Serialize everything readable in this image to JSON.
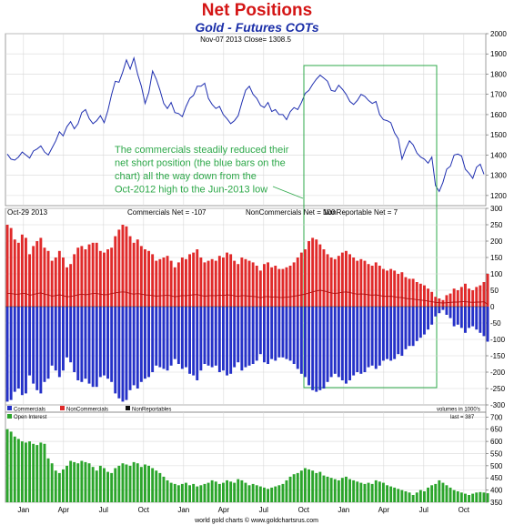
{
  "title": "Net Positions",
  "subtitle": "Gold - Futures COTs",
  "footer": "world gold charts © www.goldchartsrus.com",
  "colors": {
    "title": "#d41515",
    "subtitle": "#1a2ea8",
    "price": "#1f2fb0",
    "commercials": "#2531c8",
    "noncommercials": "#e02a2a",
    "open_interest": "#2ba52b",
    "annotation": "#2ea84a",
    "grid": "#d8d8d8"
  },
  "chart_data": [
    {
      "type": "line",
      "panel": "price",
      "header": "Nov-07 2013   Close= 1308.5",
      "ylim": [
        1150,
        2000
      ],
      "yticks": [
        1200,
        1300,
        1400,
        1500,
        1600,
        1700,
        1800,
        1900,
        2000
      ],
      "xlabels": [
        "Jan",
        "Apr",
        "Jul",
        "Oct",
        "Jan",
        "Apr",
        "Jul",
        "Oct",
        "Jan",
        "Apr",
        "Jul",
        "Oct"
      ],
      "series": [
        {
          "values": [
            1405,
            1380,
            1375,
            1390,
            1415,
            1400,
            1385,
            1420,
            1430,
            1445,
            1415,
            1400,
            1435,
            1470,
            1515,
            1495,
            1540,
            1565,
            1530,
            1555,
            1610,
            1625,
            1580,
            1555,
            1570,
            1595,
            1560,
            1620,
            1700,
            1765,
            1760,
            1810,
            1870,
            1825,
            1880,
            1800,
            1740,
            1655,
            1710,
            1815,
            1775,
            1720,
            1655,
            1630,
            1660,
            1610,
            1605,
            1590,
            1640,
            1680,
            1695,
            1740,
            1740,
            1755,
            1680,
            1650,
            1630,
            1640,
            1600,
            1580,
            1555,
            1570,
            1595,
            1660,
            1720,
            1740,
            1700,
            1680,
            1645,
            1635,
            1660,
            1615,
            1625,
            1600,
            1600,
            1575,
            1615,
            1635,
            1625,
            1660,
            1705,
            1720,
            1750,
            1775,
            1795,
            1780,
            1765,
            1720,
            1715,
            1745,
            1725,
            1700,
            1665,
            1650,
            1670,
            1700,
            1690,
            1670,
            1655,
            1665,
            1600,
            1575,
            1570,
            1560,
            1510,
            1480,
            1380,
            1430,
            1470,
            1450,
            1410,
            1390,
            1380,
            1360,
            1390,
            1250,
            1220,
            1265,
            1330,
            1345,
            1400,
            1405,
            1395,
            1330,
            1310,
            1285,
            1340,
            1355,
            1305
          ]
        }
      ],
      "annotation": "The commercials steadily reduced their net short position (the blue bars on the chart) all the way down from the Oct-2012 high to the Jun-2013 low"
    },
    {
      "type": "bar",
      "panel": "cot",
      "header_left": "Oct-29 2013",
      "header_items": [
        "Commercials Net = -107",
        "NonCommercials Net = 100",
        "NonReportable Net = 7"
      ],
      "ylim": [
        -300,
        300
      ],
      "yticks": [
        -300,
        -250,
        -200,
        -150,
        -100,
        -50,
        0,
        50,
        100,
        150,
        200,
        250,
        300
      ],
      "legend": [
        "Commercials",
        "NonCommercials",
        "NonReportables"
      ],
      "units_note": "volumes in 1000's",
      "series": [
        {
          "name": "NonCommercials",
          "values": [
            250,
            240,
            205,
            195,
            220,
            210,
            160,
            185,
            200,
            210,
            180,
            170,
            140,
            150,
            170,
            150,
            120,
            130,
            160,
            180,
            185,
            175,
            190,
            195,
            195,
            170,
            165,
            175,
            180,
            215,
            235,
            250,
            245,
            215,
            195,
            205,
            185,
            175,
            170,
            160,
            140,
            145,
            150,
            155,
            140,
            120,
            135,
            150,
            145,
            160,
            165,
            175,
            150,
            135,
            140,
            145,
            140,
            155,
            150,
            165,
            160,
            140,
            130,
            150,
            145,
            140,
            135,
            125,
            110,
            130,
            135,
            120,
            125,
            115,
            115,
            120,
            125,
            135,
            150,
            165,
            175,
            200,
            210,
            205,
            190,
            175,
            160,
            150,
            145,
            155,
            165,
            170,
            160,
            150,
            140,
            145,
            140,
            130,
            125,
            135,
            125,
            115,
            110,
            115,
            110,
            100,
            105,
            90,
            85,
            85,
            75,
            70,
            65,
            55,
            45,
            30,
            25,
            20,
            35,
            40,
            55,
            50,
            60,
            70,
            55,
            50,
            60,
            65,
            75,
            100
          ]
        },
        {
          "name": "Commercials",
          "values": [
            -290,
            -285,
            -260,
            -250,
            -270,
            -265,
            -210,
            -235,
            -255,
            -265,
            -230,
            -220,
            -180,
            -195,
            -215,
            -195,
            -155,
            -170,
            -200,
            -225,
            -230,
            -220,
            -235,
            -245,
            -245,
            -215,
            -210,
            -220,
            -230,
            -265,
            -280,
            -290,
            -285,
            -255,
            -240,
            -250,
            -230,
            -220,
            -215,
            -200,
            -180,
            -185,
            -190,
            -195,
            -180,
            -160,
            -175,
            -190,
            -185,
            -205,
            -210,
            -225,
            -195,
            -175,
            -180,
            -185,
            -180,
            -200,
            -195,
            -210,
            -205,
            -185,
            -170,
            -195,
            -185,
            -180,
            -175,
            -165,
            -145,
            -170,
            -175,
            -160,
            -165,
            -155,
            -155,
            -160,
            -165,
            -175,
            -190,
            -205,
            -215,
            -240,
            -255,
            -260,
            -255,
            -250,
            -230,
            -215,
            -205,
            -215,
            -225,
            -235,
            -225,
            -210,
            -200,
            -205,
            -200,
            -185,
            -180,
            -190,
            -180,
            -165,
            -160,
            -165,
            -160,
            -145,
            -150,
            -130,
            -120,
            -120,
            -105,
            -95,
            -85,
            -70,
            -55,
            -30,
            -20,
            -10,
            -25,
            -35,
            -60,
            -55,
            -65,
            -80,
            -65,
            -60,
            -70,
            -80,
            -90,
            -107
          ]
        },
        {
          "name": "NonReportables",
          "values": [
            40,
            40,
            38,
            38,
            40,
            40,
            35,
            37,
            40,
            42,
            38,
            36,
            32,
            34,
            36,
            34,
            30,
            31,
            33,
            36,
            38,
            36,
            38,
            40,
            40,
            38,
            36,
            37,
            40,
            42,
            44,
            45,
            44,
            40,
            38,
            40,
            38,
            36,
            35,
            34,
            32,
            33,
            34,
            35,
            33,
            30,
            32,
            34,
            33,
            35,
            36,
            37,
            34,
            32,
            33,
            34,
            33,
            35,
            34,
            36,
            35,
            33,
            31,
            34,
            33,
            32,
            31,
            30,
            27,
            30,
            31,
            29,
            30,
            28,
            28,
            29,
            30,
            32,
            34,
            36,
            38,
            42,
            45,
            48,
            50,
            48,
            45,
            42,
            40,
            42,
            44,
            45,
            43,
            40,
            38,
            39,
            38,
            36,
            35,
            36,
            34,
            32,
            31,
            32,
            30,
            28,
            28,
            25,
            24,
            23,
            21,
            20,
            19,
            17,
            15,
            13,
            12,
            11,
            12,
            13,
            14,
            14,
            15,
            15,
            14,
            13,
            14,
            14,
            15,
            7
          ]
        }
      ]
    },
    {
      "type": "bar",
      "panel": "open_interest",
      "header_left": "Open Interest",
      "last": "last = 387",
      "ylim": [
        350,
        720
      ],
      "yticks": [
        350,
        400,
        450,
        500,
        550,
        600,
        650,
        700
      ],
      "xlabels": [
        "Jan",
        "Apr",
        "Jul",
        "Oct",
        "Jan",
        "Apr",
        "Jul",
        "Oct",
        "Jan",
        "Apr",
        "Jul",
        "Oct"
      ],
      "series": [
        {
          "name": "Open Interest",
          "values": [
            650,
            640,
            620,
            610,
            600,
            595,
            600,
            590,
            585,
            595,
            590,
            530,
            510,
            480,
            470,
            485,
            500,
            520,
            515,
            510,
            520,
            515,
            510,
            495,
            480,
            500,
            490,
            475,
            470,
            490,
            500,
            510,
            505,
            500,
            515,
            510,
            495,
            505,
            500,
            490,
            480,
            470,
            455,
            440,
            430,
            425,
            420,
            425,
            430,
            420,
            425,
            415,
            420,
            425,
            430,
            440,
            435,
            425,
            430,
            440,
            435,
            430,
            445,
            440,
            430,
            420,
            425,
            420,
            415,
            410,
            405,
            410,
            415,
            420,
            425,
            440,
            455,
            465,
            470,
            480,
            490,
            485,
            480,
            470,
            475,
            460,
            455,
            450,
            445,
            440,
            450,
            455,
            445,
            440,
            435,
            430,
            425,
            430,
            425,
            440,
            435,
            430,
            420,
            415,
            410,
            405,
            400,
            395,
            390,
            380,
            390,
            400,
            395,
            410,
            420,
            425,
            440,
            430,
            420,
            410,
            400,
            395,
            390,
            385,
            380,
            385,
            390,
            392,
            390,
            387
          ]
        }
      ]
    }
  ]
}
